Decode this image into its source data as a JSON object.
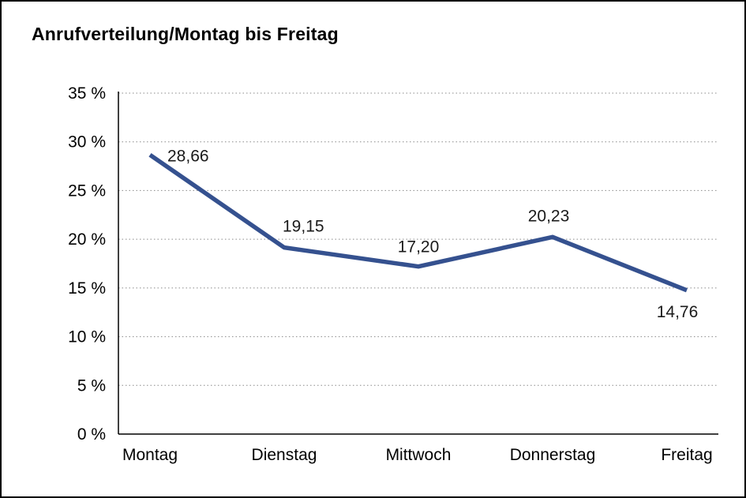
{
  "chart_data": {
    "type": "line",
    "title": "Anrufverteilung/Montag bis Freitag",
    "categories": [
      "Montag",
      "Dienstag",
      "Mittwoch",
      "Donnerstag",
      "Freitag"
    ],
    "values": [
      28.66,
      19.15,
      17.2,
      20.23,
      14.76
    ],
    "value_labels": [
      "28,66",
      "19,15",
      "17,20",
      "20,23",
      "14,76"
    ],
    "xlabel": "",
    "ylabel": "",
    "ylim": [
      0,
      35
    ],
    "ytick_step": 5,
    "ytick_labels": [
      "0 %",
      "5 %",
      "10 %",
      "15 %",
      "20 %",
      "25 %",
      "30 %",
      "35 %"
    ],
    "grid": "horizontal-dotted",
    "legend": "none",
    "line_color": "#35518f",
    "axis_color": "#000000",
    "grid_color": "#8a8a8a",
    "label_color": "#1a1a1a"
  }
}
